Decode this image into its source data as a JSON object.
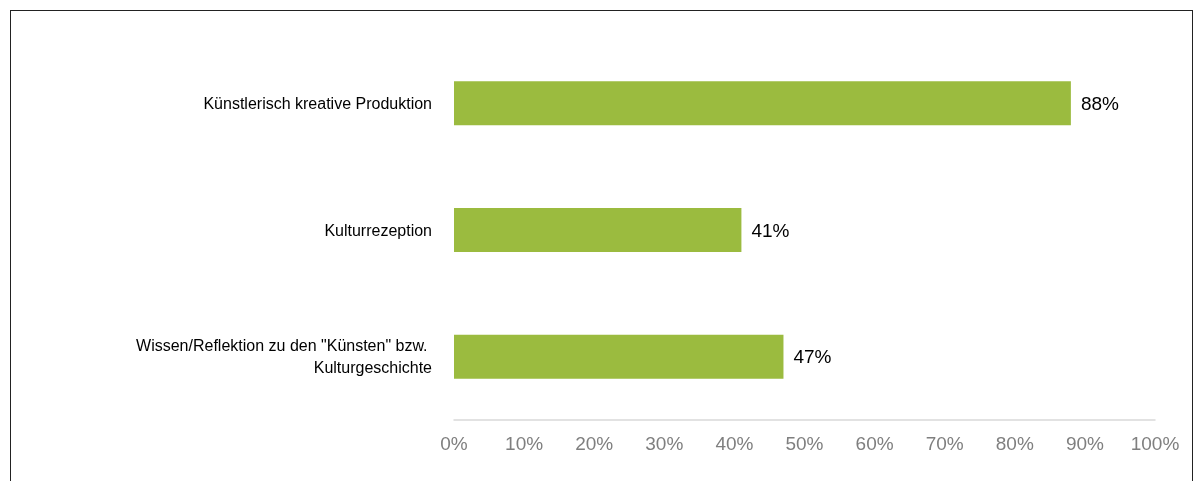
{
  "chart_data": {
    "type": "bar",
    "orientation": "horizontal",
    "categories": [
      "Künstlerisch kreative Produktion",
      "Kulturrezeption",
      "Wissen/Reflektion zu den \"Künsten\" bzw. Kulturgeschichte"
    ],
    "values": [
      88,
      41,
      47
    ],
    "color": "#9bbb3f",
    "value_labels": [
      "88%",
      "41%",
      "47%"
    ],
    "xlim": [
      0,
      100
    ],
    "xticks": [
      {
        "value": 0,
        "label": "0%"
      },
      {
        "value": 10,
        "label": "10%"
      },
      {
        "value": 20,
        "label": "20%"
      },
      {
        "value": 30,
        "label": "30%"
      },
      {
        "value": 40,
        "label": "40%"
      },
      {
        "value": 50,
        "label": "50%"
      },
      {
        "value": 60,
        "label": "60%"
      },
      {
        "value": 70,
        "label": "70%"
      },
      {
        "value": 80,
        "label": "80%"
      },
      {
        "value": 90,
        "label": "90%"
      },
      {
        "value": 100,
        "label": "100%"
      }
    ],
    "grid": false
  }
}
